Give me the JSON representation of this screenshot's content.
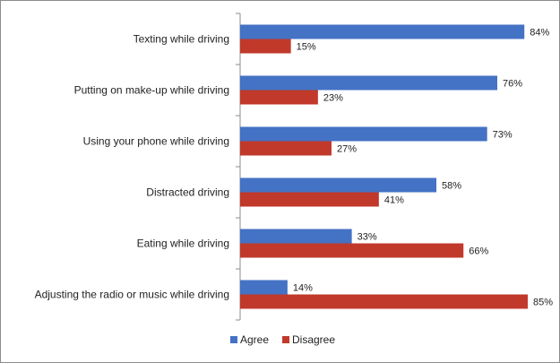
{
  "chart_data": {
    "type": "bar",
    "orientation": "horizontal",
    "categories": [
      "Texting while driving",
      "Putting on make-up while driving",
      "Using your phone while driving",
      "Distracted driving",
      "Eating while driving",
      "Adjusting the radio or music while driving"
    ],
    "series": [
      {
        "name": "Agree",
        "color": "#4472c4",
        "values": [
          84,
          76,
          73,
          58,
          33,
          14
        ]
      },
      {
        "name": "Disagree",
        "color": "#c0392b",
        "values": [
          15,
          23,
          27,
          41,
          66,
          85
        ]
      }
    ],
    "value_suffix": "%",
    "xlim": [
      0,
      85
    ],
    "grid": false,
    "legend": "bottom-center"
  }
}
